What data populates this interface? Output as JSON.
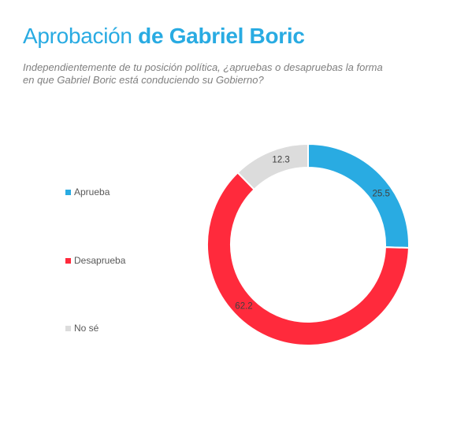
{
  "header": {
    "title_part1": "Aprobación",
    "title_part2": "de Gabriel Boric",
    "subtitle": "Independientemente de tu posición política, ¿apruebas o desapruebas la forma en que Gabriel Boric está conduciendo su Gobierno?"
  },
  "chart_data": {
    "type": "pie",
    "variant": "donut",
    "title": "Aprobación de Gabriel Boric",
    "categories": [
      "Aprueba",
      "Desaprueba",
      "No sé"
    ],
    "values": [
      25.5,
      62.2,
      12.3
    ],
    "value_labels": [
      "25.5",
      "62.2",
      "12.3"
    ],
    "colors": [
      "#29abe2",
      "#ff2a3c",
      "#dcdcdc"
    ],
    "legend_position": "left"
  }
}
